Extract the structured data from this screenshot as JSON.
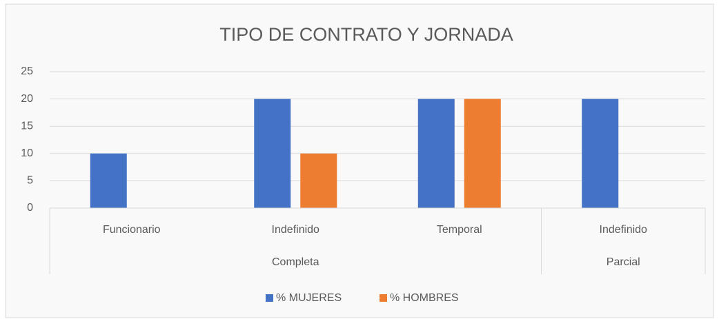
{
  "chart_data": {
    "type": "bar",
    "title": "TIPO DE CONTRATO Y JORNADA",
    "categories": [
      "Funcionario",
      "Indefinido",
      "Temporal",
      "Indefinido"
    ],
    "category_groups": [
      "Completa",
      "Completa",
      "Completa",
      "Parcial"
    ],
    "series": [
      {
        "name": "% MUJERES",
        "color": "#4472c4",
        "values": [
          10,
          20,
          20,
          20
        ]
      },
      {
        "name": "% HOMBRES",
        "color": "#ed7d31",
        "values": [
          0,
          10,
          20,
          0
        ]
      }
    ],
    "ylim": [
      0,
      25
    ],
    "yticks": [
      0,
      5,
      10,
      15,
      20,
      25
    ],
    "grid": true,
    "legend": "bottom"
  }
}
